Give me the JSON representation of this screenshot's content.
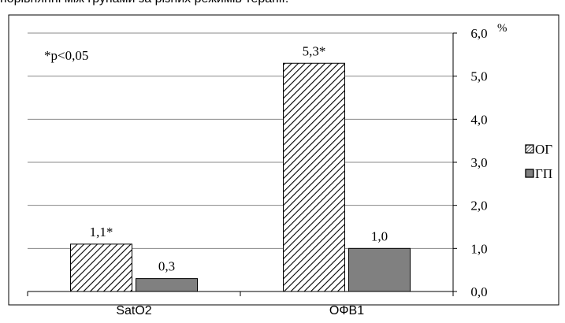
{
  "page": {
    "caption_line": "порівнянні між групами за різних режимів терапії."
  },
  "chart_data": {
    "type": "bar",
    "categories": [
      "SatO2",
      "ОФВ1"
    ],
    "series": [
      {
        "name": "ОГ",
        "values": [
          1.1,
          5.3
        ],
        "labels": [
          "1,1*",
          "5,3*"
        ],
        "pattern": "hatch",
        "color": "#ffffff"
      },
      {
        "name": "ГП",
        "values": [
          0.3,
          1.0
        ],
        "labels": [
          "0,3",
          "1,0"
        ],
        "pattern": "solid",
        "color": "#808080"
      }
    ],
    "ylim": [
      0,
      6
    ],
    "yticks": [
      "0,0",
      "1,0",
      "2,0",
      "3,0",
      "4,0",
      "5,0",
      "6,0"
    ],
    "yunit": "%",
    "y_axis_side": "right",
    "gridlines": true,
    "legend_position": "right",
    "annotation": "*p<0,05"
  }
}
